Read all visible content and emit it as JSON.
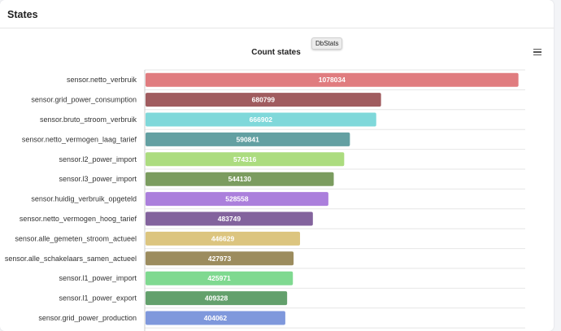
{
  "card": {
    "title": "States"
  },
  "badge": {
    "label": "DbStats"
  },
  "menu": {
    "icon": "hamburger-menu-icon"
  },
  "chart_data": {
    "type": "bar",
    "orientation": "horizontal",
    "title": "Count states",
    "categories": [
      "sensor.netto_verbruik",
      "sensor.grid_power_consumption",
      "sensor.bruto_stroom_verbruik",
      "sensor.netto_vermogen_laag_tarief",
      "sensor.l2_power_import",
      "sensor.l3_power_import",
      "sensor.huidig_verbruik_opgeteld",
      "sensor.netto_vermogen_hoog_tarief",
      "sensor.alle_gemeten_stroom_actueel",
      "sensor.alle_schakelaars_samen_actueel",
      "sensor.l1_power_import",
      "sensor.l1_power_export",
      "sensor.grid_power_production"
    ],
    "values": [
      1078034,
      680799,
      666902,
      590841,
      574316,
      544130,
      528558,
      483749,
      446629,
      427973,
      425971,
      409328,
      404062
    ],
    "colors": [
      "#e07c7f",
      "#a05c5f",
      "#7fd8da",
      "#63a0a2",
      "#acdc7f",
      "#7b9c5f",
      "#ab7fdc",
      "#83639d",
      "#dcc57f",
      "#9c8c5e",
      "#7fd990",
      "#63a06c",
      "#7f98dc"
    ],
    "xlim": [
      0,
      1100000
    ],
    "data_labels": true,
    "grid": "horizontal separators",
    "legend": "none"
  }
}
